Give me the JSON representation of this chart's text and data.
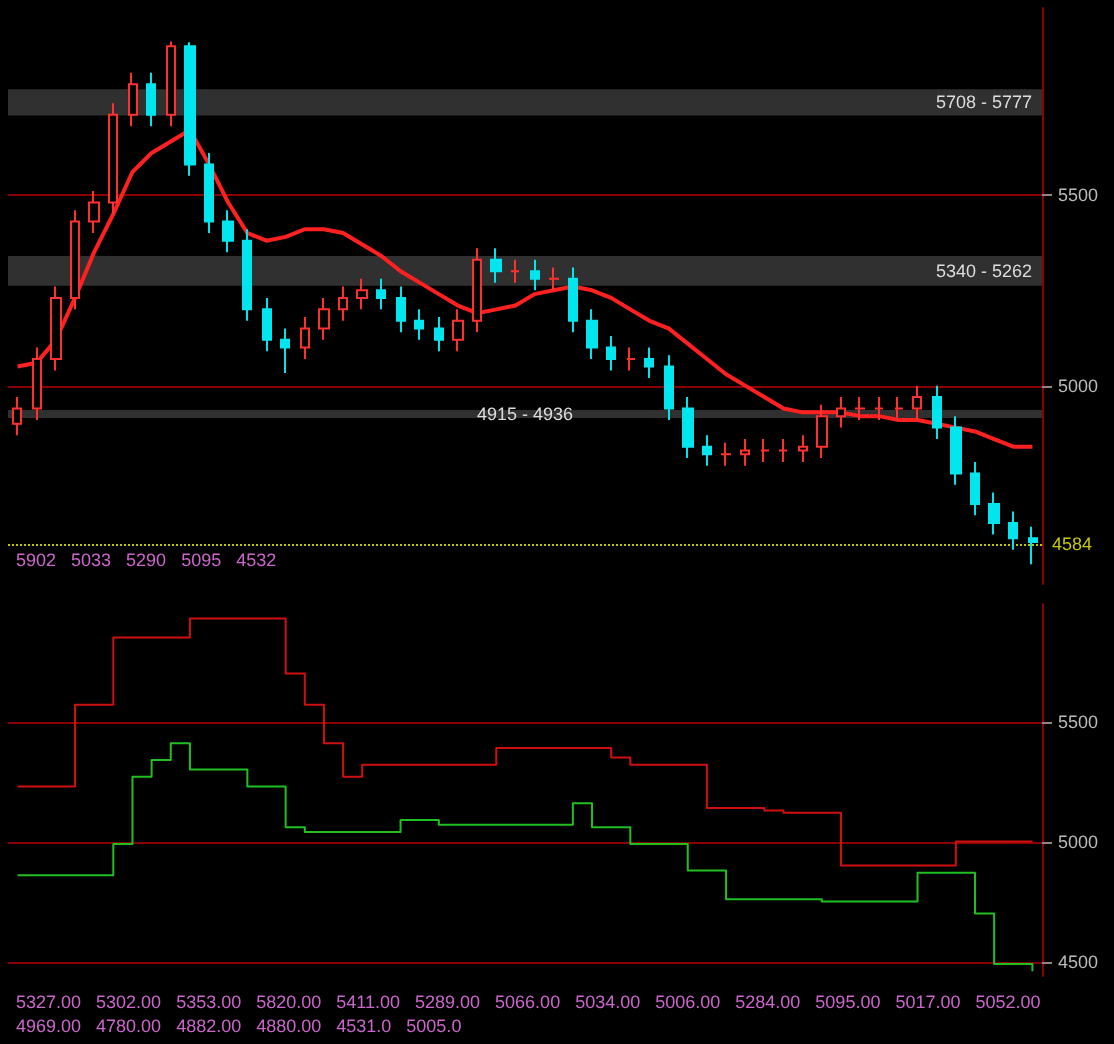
{
  "chart_data": [
    {
      "type": "candlestick",
      "categories": [
        null,
        null,
        null,
        null,
        null,
        null,
        null,
        null,
        null,
        null,
        null,
        null,
        null,
        null,
        null,
        null,
        null,
        null,
        null,
        null,
        null,
        null,
        null,
        null,
        null,
        null,
        null,
        null,
        null,
        null,
        null,
        null,
        null,
        null,
        null,
        null,
        null,
        null,
        null,
        null,
        null,
        null,
        null,
        null,
        null,
        null,
        null,
        null,
        null,
        null,
        null,
        null,
        null,
        null
      ],
      "ohlc": [
        [
          4900,
          4970,
          4870,
          4940
        ],
        [
          4940,
          5100,
          4910,
          5070
        ],
        [
          5070,
          5260,
          5040,
          5230
        ],
        [
          5230,
          5460,
          5200,
          5430
        ],
        [
          5430,
          5510,
          5400,
          5480
        ],
        [
          5480,
          5740,
          5450,
          5710
        ],
        [
          5710,
          5820,
          5680,
          5790
        ],
        [
          5790,
          5820,
          5680,
          5710
        ],
        [
          5710,
          5902,
          5680,
          5890
        ],
        [
          5890,
          5900,
          5550,
          5580
        ],
        [
          5580,
          5610,
          5400,
          5430
        ],
        [
          5430,
          5460,
          5350,
          5380
        ],
        [
          5380,
          5410,
          5170,
          5200
        ],
        [
          5200,
          5230,
          5090,
          5120
        ],
        [
          5120,
          5150,
          5033,
          5100
        ],
        [
          5100,
          5180,
          5070,
          5150
        ],
        [
          5150,
          5230,
          5120,
          5200
        ],
        [
          5200,
          5260,
          5170,
          5230
        ],
        [
          5230,
          5280,
          5200,
          5250
        ],
        [
          5250,
          5280,
          5200,
          5230
        ],
        [
          5230,
          5260,
          5140,
          5170
        ],
        [
          5170,
          5200,
          5120,
          5150
        ],
        [
          5150,
          5180,
          5090,
          5120
        ],
        [
          5120,
          5200,
          5090,
          5170
        ],
        [
          5170,
          5360,
          5140,
          5330
        ],
        [
          5330,
          5360,
          5270,
          5300
        ],
        [
          5300,
          5330,
          5270,
          5300
        ],
        [
          5300,
          5330,
          5250,
          5280
        ],
        [
          5280,
          5310,
          5250,
          5280
        ],
        [
          5280,
          5310,
          5140,
          5170
        ],
        [
          5170,
          5200,
          5070,
          5100
        ],
        [
          5100,
          5130,
          5040,
          5070
        ],
        [
          5070,
          5100,
          5040,
          5070
        ],
        [
          5070,
          5100,
          5020,
          5050
        ],
        [
          5050,
          5080,
          4910,
          4940
        ],
        [
          4940,
          4970,
          4810,
          4840
        ],
        [
          4840,
          4870,
          4790,
          4820
        ],
        [
          4820,
          4850,
          4790,
          4820
        ],
        [
          4820,
          4860,
          4790,
          4830
        ],
        [
          4830,
          4860,
          4800,
          4830
        ],
        [
          4830,
          4860,
          4800,
          4830
        ],
        [
          4830,
          4870,
          4800,
          4840
        ],
        [
          4840,
          4950,
          4810,
          4920
        ],
        [
          4920,
          4970,
          4890,
          4940
        ],
        [
          4940,
          4970,
          4910,
          4940
        ],
        [
          4940,
          4970,
          4910,
          4940
        ],
        [
          4940,
          4970,
          4910,
          4940
        ],
        [
          4940,
          5000,
          4910,
          4970
        ],
        [
          4970,
          5000,
          4860,
          4890
        ],
        [
          4890,
          4920,
          4740,
          4770
        ],
        [
          4770,
          4800,
          4660,
          4690
        ],
        [
          4690,
          4720,
          4610,
          4640
        ],
        [
          4640,
          4670,
          4570,
          4600
        ],
        [
          4600,
          4630,
          4532,
          4590
        ]
      ],
      "series": [
        {
          "type": "line",
          "color": "#ff2020",
          "values": [
            5050,
            5060,
            5120,
            5230,
            5350,
            5450,
            5560,
            5610,
            5640,
            5670,
            5580,
            5480,
            5400,
            5380,
            5390,
            5410,
            5410,
            5400,
            5370,
            5340,
            5300,
            5270,
            5240,
            5210,
            5190,
            5200,
            5210,
            5240,
            5250,
            5260,
            5250,
            5230,
            5200,
            5170,
            5150,
            5110,
            5070,
            5030,
            5000,
            4970,
            4940,
            4930,
            4930,
            4930,
            4920,
            4920,
            4910,
            4910,
            4900,
            4890,
            4880,
            4860,
            4840,
            4840
          ]
        }
      ],
      "ylim": [
        4480,
        5990
      ],
      "yticks": [
        5000,
        5500
      ],
      "grid": "y",
      "tick_labels": "y",
      "bands": [
        {
          "axis": "y",
          "from": 5708,
          "to": 5777,
          "label": "5708 - 5777",
          "color": "#3c3c3c"
        },
        {
          "axis": "y",
          "from": 5262,
          "to": 5340,
          "label": "5340 - 5262",
          "color": "#3c3c3c"
        },
        {
          "axis": "y",
          "from": 4915,
          "to": 4936,
          "label": "4915 - 4936",
          "color": "#3c3c3c"
        }
      ],
      "ref_lines": [
        {
          "axis": "y",
          "value": 4584,
          "label": "4584",
          "color": "#c8c800",
          "line_style": "dotted"
        }
      ],
      "annotations": [
        "5902",
        "5033",
        "5290",
        "5095",
        "4532"
      ]
    },
    {
      "type": "step",
      "categories": [
        null,
        null,
        null,
        null,
        null,
        null,
        null,
        null,
        null,
        null,
        null,
        null,
        null,
        null,
        null,
        null,
        null,
        null,
        null,
        null,
        null,
        null,
        null,
        null,
        null,
        null,
        null,
        null,
        null,
        null,
        null,
        null,
        null,
        null,
        null,
        null,
        null,
        null,
        null,
        null,
        null,
        null,
        null,
        null,
        null,
        null,
        null,
        null,
        null,
        null,
        null,
        null,
        null,
        null
      ],
      "series": [
        {
          "color": "#d01010",
          "values": [
            5230,
            5230,
            5230,
            5570,
            5570,
            5850,
            5850,
            5850,
            5850,
            5930,
            5930,
            5930,
            5930,
            5930,
            5700,
            5570,
            5410,
            5270,
            5320,
            5320,
            5320,
            5320,
            5320,
            5320,
            5320,
            5390,
            5390,
            5390,
            5390,
            5390,
            5390,
            5350,
            5320,
            5320,
            5320,
            5320,
            5140,
            5140,
            5140,
            5130,
            5120,
            5120,
            5120,
            4900,
            4900,
            4900,
            4900,
            4900,
            4900,
            5000,
            5000,
            5000,
            5000,
            5000
          ]
        },
        {
          "color": "#20c020",
          "values": [
            4860,
            4860,
            4860,
            4860,
            4860,
            4990,
            5270,
            5340,
            5410,
            5300,
            5300,
            5300,
            5230,
            5230,
            5060,
            5040,
            5040,
            5040,
            5040,
            5040,
            5090,
            5090,
            5070,
            5070,
            5070,
            5070,
            5070,
            5070,
            5070,
            5160,
            5060,
            5060,
            4990,
            4990,
            4990,
            4880,
            4880,
            4760,
            4760,
            4760,
            4760,
            4760,
            4750,
            4750,
            4750,
            4750,
            4750,
            4870,
            4870,
            4870,
            4700,
            4490,
            4490,
            4460
          ]
        }
      ],
      "ylim": [
        4440,
        5990
      ],
      "yticks": [
        4500,
        5000,
        5500
      ],
      "grid": "y",
      "tick_labels": "y",
      "annotations": [
        "5327.00",
        "5302.00",
        "5353.00",
        "5820.00",
        "5411.00",
        "5289.00",
        "5066.00",
        "5034.00",
        "5006.00",
        "5284.00",
        "5095.00",
        "5017.00",
        "5052.00",
        "4969.00",
        "4780.00",
        "4882.00",
        "4880.00",
        "4531.0",
        "5005.0"
      ]
    }
  ]
}
